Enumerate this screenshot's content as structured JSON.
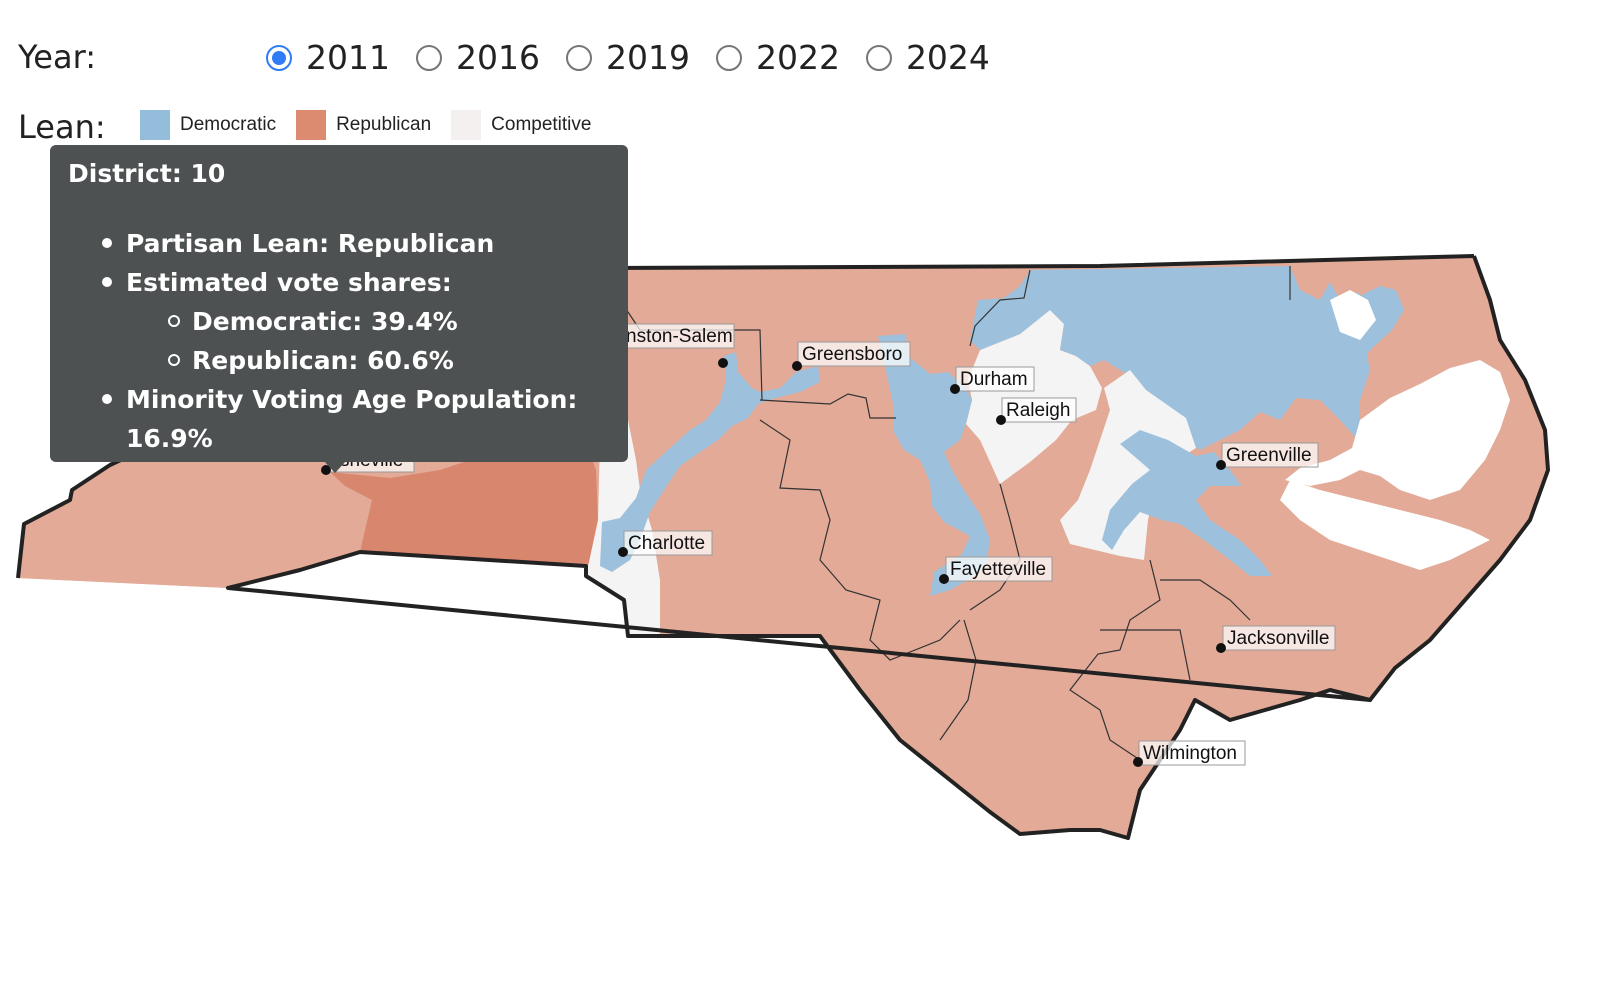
{
  "controls": {
    "year_label": "Year:",
    "years": [
      {
        "label": "2011",
        "checked": true
      },
      {
        "label": "2016",
        "checked": false
      },
      {
        "label": "2019",
        "checked": false
      },
      {
        "label": "2022",
        "checked": false
      },
      {
        "label": "2024",
        "checked": false
      }
    ],
    "lean_label": "Lean:",
    "legend": [
      {
        "label": "Democratic",
        "color": "#94bcdb"
      },
      {
        "label": "Republican",
        "color": "#dc8b71"
      },
      {
        "label": "Competitive",
        "color": "#f4f0f0"
      }
    ]
  },
  "map": {
    "colors": {
      "republican": "#e2aa97",
      "republican_highlight": "#d8866d",
      "democratic": "#9dc0dc",
      "competitive": "#f5f4f4",
      "outline": "#222222"
    },
    "cities": [
      {
        "name": "Winston-Salem",
        "shown_text": "nston-Salem"
      },
      {
        "name": "Greensboro",
        "shown_text": "Greensboro"
      },
      {
        "name": "Durham",
        "shown_text": "Durham"
      },
      {
        "name": "Raleigh",
        "shown_text": "Raleigh"
      },
      {
        "name": "Greenville",
        "shown_text": "Greenville"
      },
      {
        "name": "Charlotte",
        "shown_text": "Charlotte"
      },
      {
        "name": "Fayetteville",
        "shown_text": "Fayetteville"
      },
      {
        "name": "Jacksonville",
        "shown_text": "Jacksonville"
      },
      {
        "name": "Wilmington",
        "shown_text": "Wilmington"
      },
      {
        "name": "Asheville",
        "shown_text": "sheville"
      }
    ]
  },
  "tooltip": {
    "title": "District: 10",
    "partisan_lean": "Partisan Lean: Republican",
    "vote_shares_label": "Estimated vote shares:",
    "democratic": "Democratic: 39.4%",
    "republican": "Republican: 60.6%",
    "minority_vap": "Minority Voting Age Population: 16.9%"
  }
}
